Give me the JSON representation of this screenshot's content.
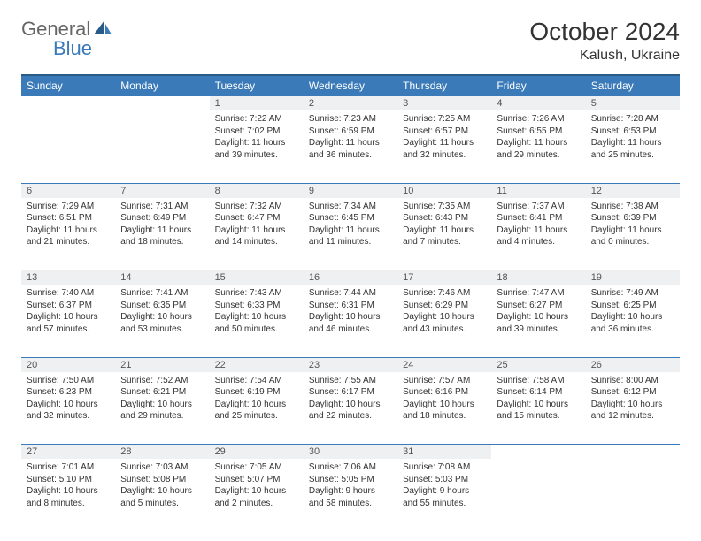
{
  "brand": {
    "word1": "General",
    "word2": "Blue"
  },
  "title": "October 2024",
  "location": "Kalush, Ukraine",
  "colors": {
    "header_bg": "#3a7ab8",
    "header_border": "#2a5a88",
    "daynum_bg": "#eef0f2",
    "row_border": "#3a7ab8",
    "text": "#333333",
    "muted": "#666666"
  },
  "weekdays": [
    "Sunday",
    "Monday",
    "Tuesday",
    "Wednesday",
    "Thursday",
    "Friday",
    "Saturday"
  ],
  "weeks": [
    {
      "nums": [
        "",
        "",
        "1",
        "2",
        "3",
        "4",
        "5"
      ],
      "cells": [
        null,
        null,
        {
          "sunrise": "Sunrise: 7:22 AM",
          "sunset": "Sunset: 7:02 PM",
          "day1": "Daylight: 11 hours",
          "day2": "and 39 minutes."
        },
        {
          "sunrise": "Sunrise: 7:23 AM",
          "sunset": "Sunset: 6:59 PM",
          "day1": "Daylight: 11 hours",
          "day2": "and 36 minutes."
        },
        {
          "sunrise": "Sunrise: 7:25 AM",
          "sunset": "Sunset: 6:57 PM",
          "day1": "Daylight: 11 hours",
          "day2": "and 32 minutes."
        },
        {
          "sunrise": "Sunrise: 7:26 AM",
          "sunset": "Sunset: 6:55 PM",
          "day1": "Daylight: 11 hours",
          "day2": "and 29 minutes."
        },
        {
          "sunrise": "Sunrise: 7:28 AM",
          "sunset": "Sunset: 6:53 PM",
          "day1": "Daylight: 11 hours",
          "day2": "and 25 minutes."
        }
      ]
    },
    {
      "nums": [
        "6",
        "7",
        "8",
        "9",
        "10",
        "11",
        "12"
      ],
      "cells": [
        {
          "sunrise": "Sunrise: 7:29 AM",
          "sunset": "Sunset: 6:51 PM",
          "day1": "Daylight: 11 hours",
          "day2": "and 21 minutes."
        },
        {
          "sunrise": "Sunrise: 7:31 AM",
          "sunset": "Sunset: 6:49 PM",
          "day1": "Daylight: 11 hours",
          "day2": "and 18 minutes."
        },
        {
          "sunrise": "Sunrise: 7:32 AM",
          "sunset": "Sunset: 6:47 PM",
          "day1": "Daylight: 11 hours",
          "day2": "and 14 minutes."
        },
        {
          "sunrise": "Sunrise: 7:34 AM",
          "sunset": "Sunset: 6:45 PM",
          "day1": "Daylight: 11 hours",
          "day2": "and 11 minutes."
        },
        {
          "sunrise": "Sunrise: 7:35 AM",
          "sunset": "Sunset: 6:43 PM",
          "day1": "Daylight: 11 hours",
          "day2": "and 7 minutes."
        },
        {
          "sunrise": "Sunrise: 7:37 AM",
          "sunset": "Sunset: 6:41 PM",
          "day1": "Daylight: 11 hours",
          "day2": "and 4 minutes."
        },
        {
          "sunrise": "Sunrise: 7:38 AM",
          "sunset": "Sunset: 6:39 PM",
          "day1": "Daylight: 11 hours",
          "day2": "and 0 minutes."
        }
      ]
    },
    {
      "nums": [
        "13",
        "14",
        "15",
        "16",
        "17",
        "18",
        "19"
      ],
      "cells": [
        {
          "sunrise": "Sunrise: 7:40 AM",
          "sunset": "Sunset: 6:37 PM",
          "day1": "Daylight: 10 hours",
          "day2": "and 57 minutes."
        },
        {
          "sunrise": "Sunrise: 7:41 AM",
          "sunset": "Sunset: 6:35 PM",
          "day1": "Daylight: 10 hours",
          "day2": "and 53 minutes."
        },
        {
          "sunrise": "Sunrise: 7:43 AM",
          "sunset": "Sunset: 6:33 PM",
          "day1": "Daylight: 10 hours",
          "day2": "and 50 minutes."
        },
        {
          "sunrise": "Sunrise: 7:44 AM",
          "sunset": "Sunset: 6:31 PM",
          "day1": "Daylight: 10 hours",
          "day2": "and 46 minutes."
        },
        {
          "sunrise": "Sunrise: 7:46 AM",
          "sunset": "Sunset: 6:29 PM",
          "day1": "Daylight: 10 hours",
          "day2": "and 43 minutes."
        },
        {
          "sunrise": "Sunrise: 7:47 AM",
          "sunset": "Sunset: 6:27 PM",
          "day1": "Daylight: 10 hours",
          "day2": "and 39 minutes."
        },
        {
          "sunrise": "Sunrise: 7:49 AM",
          "sunset": "Sunset: 6:25 PM",
          "day1": "Daylight: 10 hours",
          "day2": "and 36 minutes."
        }
      ]
    },
    {
      "nums": [
        "20",
        "21",
        "22",
        "23",
        "24",
        "25",
        "26"
      ],
      "cells": [
        {
          "sunrise": "Sunrise: 7:50 AM",
          "sunset": "Sunset: 6:23 PM",
          "day1": "Daylight: 10 hours",
          "day2": "and 32 minutes."
        },
        {
          "sunrise": "Sunrise: 7:52 AM",
          "sunset": "Sunset: 6:21 PM",
          "day1": "Daylight: 10 hours",
          "day2": "and 29 minutes."
        },
        {
          "sunrise": "Sunrise: 7:54 AM",
          "sunset": "Sunset: 6:19 PM",
          "day1": "Daylight: 10 hours",
          "day2": "and 25 minutes."
        },
        {
          "sunrise": "Sunrise: 7:55 AM",
          "sunset": "Sunset: 6:17 PM",
          "day1": "Daylight: 10 hours",
          "day2": "and 22 minutes."
        },
        {
          "sunrise": "Sunrise: 7:57 AM",
          "sunset": "Sunset: 6:16 PM",
          "day1": "Daylight: 10 hours",
          "day2": "and 18 minutes."
        },
        {
          "sunrise": "Sunrise: 7:58 AM",
          "sunset": "Sunset: 6:14 PM",
          "day1": "Daylight: 10 hours",
          "day2": "and 15 minutes."
        },
        {
          "sunrise": "Sunrise: 8:00 AM",
          "sunset": "Sunset: 6:12 PM",
          "day1": "Daylight: 10 hours",
          "day2": "and 12 minutes."
        }
      ]
    },
    {
      "nums": [
        "27",
        "28",
        "29",
        "30",
        "31",
        "",
        ""
      ],
      "cells": [
        {
          "sunrise": "Sunrise: 7:01 AM",
          "sunset": "Sunset: 5:10 PM",
          "day1": "Daylight: 10 hours",
          "day2": "and 8 minutes."
        },
        {
          "sunrise": "Sunrise: 7:03 AM",
          "sunset": "Sunset: 5:08 PM",
          "day1": "Daylight: 10 hours",
          "day2": "and 5 minutes."
        },
        {
          "sunrise": "Sunrise: 7:05 AM",
          "sunset": "Sunset: 5:07 PM",
          "day1": "Daylight: 10 hours",
          "day2": "and 2 minutes."
        },
        {
          "sunrise": "Sunrise: 7:06 AM",
          "sunset": "Sunset: 5:05 PM",
          "day1": "Daylight: 9 hours",
          "day2": "and 58 minutes."
        },
        {
          "sunrise": "Sunrise: 7:08 AM",
          "sunset": "Sunset: 5:03 PM",
          "day1": "Daylight: 9 hours",
          "day2": "and 55 minutes."
        },
        null,
        null
      ]
    }
  ]
}
